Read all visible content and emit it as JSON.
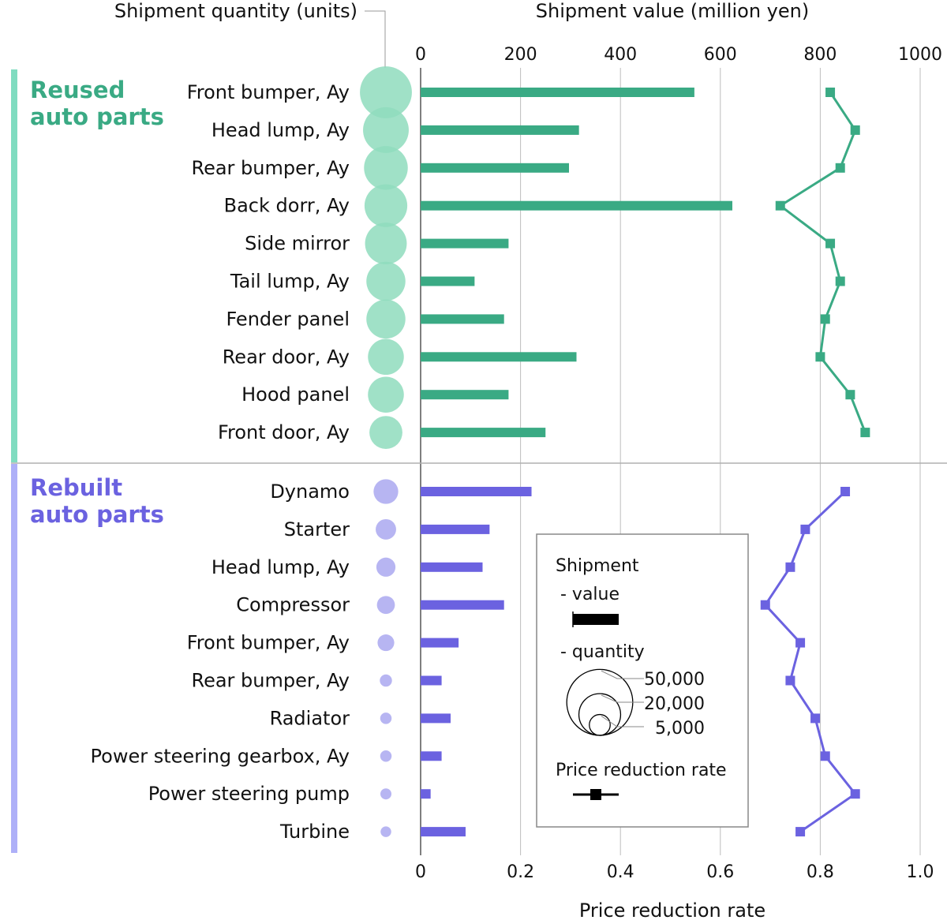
{
  "chart_data": {
    "type": "bar",
    "title_quantity": "Shipment quantity (units)",
    "title_value": "Shipment value (million yen)",
    "xlabel_bottom": "Price reduction rate",
    "top_axis": {
      "ticks": [
        "0",
        "200",
        "400",
        "600",
        "800",
        "1000"
      ],
      "range": [
        0,
        1000
      ]
    },
    "bottom_axis": {
      "ticks": [
        "0",
        "0.2",
        "0.4",
        "0.6",
        "0.8",
        "1.0"
      ],
      "range": [
        0,
        1.0
      ]
    },
    "colors": {
      "reused": "#3aaa84",
      "reused_bubble": "#8fdcbd",
      "reused_bar": "#80dcc0",
      "rebuilt": "#6b62e0",
      "rebuilt_bubble": "#aaa8f0",
      "rebuilt_bar": "#aeb0f8"
    },
    "groups": [
      {
        "name": "Reused auto parts",
        "name_line1": "Reused",
        "name_line2": "auto parts",
        "key": "reused",
        "items": [
          {
            "label": "Front bumper, Ay",
            "value": 548,
            "quantity": 31000,
            "rate": 0.82
          },
          {
            "label": "Head lump, Ay",
            "value": 317,
            "quantity": 24000,
            "rate": 0.87
          },
          {
            "label": "Rear bumper, Ay",
            "value": 297,
            "quantity": 22000,
            "rate": 0.84
          },
          {
            "label": "Back dorr, Ay",
            "value": 624,
            "quantity": 21000,
            "rate": 0.72
          },
          {
            "label": "Side mirror",
            "value": 176,
            "quantity": 20000,
            "rate": 0.82
          },
          {
            "label": "Tail lump, Ay",
            "value": 108,
            "quantity": 17500,
            "rate": 0.84
          },
          {
            "label": "Fender panel",
            "value": 167,
            "quantity": 17500,
            "rate": 0.81
          },
          {
            "label": "Rear door, Ay",
            "value": 312,
            "quantity": 14800,
            "rate": 0.8
          },
          {
            "label": "Hood panel",
            "value": 176,
            "quantity": 14800,
            "rate": 0.86
          },
          {
            "label": "Front door, Ay",
            "value": 250,
            "quantity": 12500,
            "rate": 0.89
          }
        ]
      },
      {
        "name": "Rebuilt auto parts",
        "name_line1": "Rebuilt",
        "name_line2": "auto parts",
        "key": "rebuilt",
        "items": [
          {
            "label": "Dynamo",
            "value": 222,
            "quantity": 7000,
            "rate": 0.85
          },
          {
            "label": "Starter",
            "value": 138,
            "quantity": 4800,
            "rate": 0.77
          },
          {
            "label": "Head lump, Ay",
            "value": 124,
            "quantity": 4200,
            "rate": 0.74
          },
          {
            "label": "Compressor",
            "value": 167,
            "quantity": 3700,
            "rate": 0.69
          },
          {
            "label": "Front bumper, Ay",
            "value": 76,
            "quantity": 3200,
            "rate": 0.76
          },
          {
            "label": "Rear bumper, Ay",
            "value": 42,
            "quantity": 1700,
            "rate": 0.74
          },
          {
            "label": "Radiator",
            "value": 60,
            "quantity": 1500,
            "rate": 0.79
          },
          {
            "label": "Power steering gearbox, Ay",
            "value": 42,
            "quantity": 1500,
            "rate": 0.81
          },
          {
            "label": "Power steering pump",
            "value": 20,
            "quantity": 1400,
            "rate": 0.87
          },
          {
            "label": "Turbine",
            "value": 90,
            "quantity": 1300,
            "rate": 0.76
          }
        ]
      }
    ],
    "legend": {
      "title": "Shipment",
      "value_label": "- value",
      "quantity_label": "- quantity",
      "quantity_levels": [
        {
          "label": "50,000",
          "quantity": 50000
        },
        {
          "label": "20,000",
          "quantity": 20000
        },
        {
          "label": "5,000",
          "quantity": 5000
        }
      ],
      "rate_label": "Price reduction rate"
    }
  }
}
